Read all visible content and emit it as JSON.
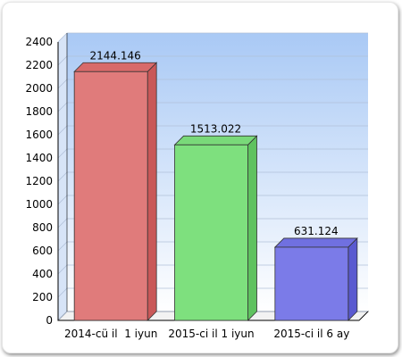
{
  "chart_data": {
    "type": "bar",
    "categories": [
      "2014-cü il  1 iyun",
      "2015-ci il 1 iyun",
      "2015-ci il 6 ay"
    ],
    "values": [
      2144.146,
      1513.022,
      631.124
    ],
    "value_labels": [
      "2144.146",
      "1513.022",
      "631.124"
    ],
    "title": "",
    "xlabel": "",
    "ylabel": "",
    "ylim": [
      0,
      2400
    ],
    "yticks": [
      "0",
      "200",
      "400",
      "600",
      "800",
      "1000",
      "1200",
      "1400",
      "1600",
      "1800",
      "2000",
      "2200",
      "2400"
    ],
    "grid": true,
    "legend": "none",
    "colors": {
      "series": [
        "#e07b7b",
        "#7ee07e",
        "#7b7be8"
      ],
      "series_top": [
        "#d86a6a",
        "#79d979",
        "#7070e0"
      ],
      "series_side": [
        "#c95858",
        "#5fc25f",
        "#5a5ad0"
      ],
      "background_top": "#a9c9f5",
      "background_bottom": "#ffffff",
      "grid": "#b0c0d8"
    }
  }
}
